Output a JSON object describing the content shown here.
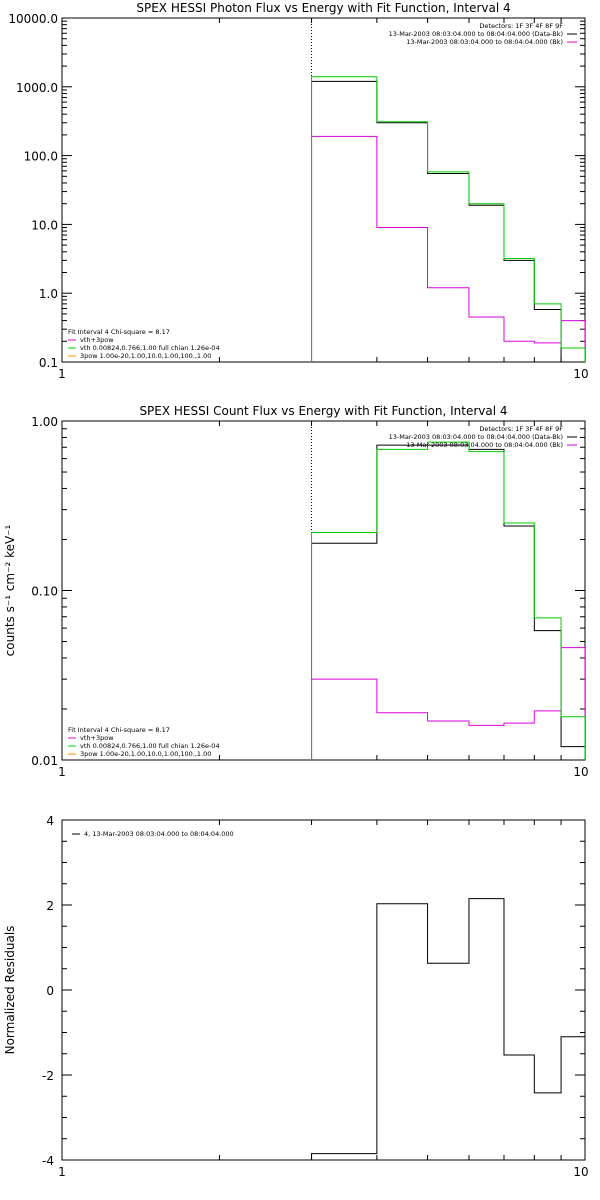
{
  "chart_data": [
    {
      "type": "line",
      "title": "SPEX HESSI Photon Flux vs Energy with Fit Function, Interval 4",
      "xlabel": "",
      "ylabel": "",
      "xscale": "log",
      "yscale": "log",
      "xlim": [
        1,
        10
      ],
      "ylim": [
        0.1,
        10000
      ],
      "xticklabels": [
        "1",
        "10"
      ],
      "yticklabels": [
        "0.1",
        "1.0",
        "10.0",
        "100.0",
        "1000.0",
        "10000.0"
      ],
      "marker_line_x": 3,
      "edges": [
        3,
        4,
        5,
        6,
        7,
        8,
        9,
        10
      ],
      "series": [
        {
          "name": "13-Mar-2003 08:03:04.000 to 08:04:04.000 (Data-Bk)",
          "color": "#000000",
          "values": [
            1200,
            300,
            55,
            19,
            3,
            0.58,
            0.1
          ]
        },
        {
          "name": "13-Mar-2003 08:03:04.000 to 08:04:04.000 (Bk)",
          "color": "#dd00dd",
          "values": [
            190,
            9,
            1.2,
            0.45,
            0.2,
            0.19,
            0.4
          ]
        },
        {
          "name": "vth 0.00824,0.766,1.00 full chian 1.26e-04",
          "color": "#00cc00",
          "values": [
            1400,
            310,
            58,
            20,
            3.2,
            0.7,
            0.16
          ]
        }
      ],
      "legend_top_right": [
        "Detectors: 1F 3F 4F 8F 9F",
        "13-Mar-2003 08:03:04.000 to 08:04:04.000 (Data-Bk)",
        "13-Mar-2003 08:03:04.000 to 08:04:04.000 (Bk)"
      ],
      "legend_top_right_colors": [
        "",
        "#000000",
        "#dd00dd"
      ],
      "legend_bottom_left_title": "Fit Interval 4   Chi-square = 8.17",
      "legend_bottom_left": [
        {
          "text": "vth+3pow",
          "color": "#dd00dd"
        },
        {
          "text": "vth 0.00824,0.766,1.00  full chian 1.26e-04",
          "color": "#00cc00"
        },
        {
          "text": "3pow 1.00e-20,1.00,10.0,1.00,100.,1.00",
          "color": "#ff8800"
        }
      ]
    },
    {
      "type": "line",
      "title": "SPEX HESSI Count Flux vs Energy with Fit Function, Interval 4",
      "xlabel": "",
      "ylabel": "counts s⁻¹ cm⁻² keV⁻¹",
      "xscale": "log",
      "yscale": "log",
      "xlim": [
        1,
        10
      ],
      "ylim": [
        0.01,
        1.0
      ],
      "xticklabels": [
        "1",
        "10"
      ],
      "yticklabels": [
        "0.01",
        "0.10",
        "1.00"
      ],
      "marker_line_x": 3,
      "edges": [
        3,
        4,
        5,
        6,
        7,
        8,
        9,
        10
      ],
      "series": [
        {
          "name": "13-Mar-2003 08:03:04.000 to 08:04:04.000 (Data-Bk)",
          "color": "#000000",
          "values": [
            0.19,
            0.72,
            0.72,
            0.68,
            0.24,
            0.058,
            0.012
          ]
        },
        {
          "name": "13-Mar-2003 08:03:04.000 to 08:04:04.000 (Bk)",
          "color": "#dd00dd",
          "values": [
            0.03,
            0.019,
            0.017,
            0.016,
            0.0165,
            0.0195,
            0.046
          ]
        },
        {
          "name": "vth 0.00824,0.766,1.00 full chian 1.26e-04",
          "color": "#00cc00",
          "values": [
            0.22,
            0.68,
            0.75,
            0.66,
            0.25,
            0.069,
            0.018
          ]
        }
      ],
      "legend_top_right": [
        "Detectors: 1F 3F 4F 8F 9F",
        "13-Mar-2003 08:03:04.000 to 08:04:04.000 (Data-Bk)",
        "13-Mar-2003 08:03:04.000 to 08:04:04.000 (Bk)"
      ],
      "legend_top_right_colors": [
        "",
        "#000000",
        "#dd00dd"
      ],
      "legend_bottom_left_title": "Fit Interval 4   Chi-square = 8.17",
      "legend_bottom_left": [
        {
          "text": "vth+3pow",
          "color": "#dd00dd"
        },
        {
          "text": "vth 0.00824,0.766,1.00  full chian 1.26e-04",
          "color": "#00cc00"
        },
        {
          "text": "3pow 1.00e-20,1.00,10.0,1.00,100.,1.00",
          "color": "#ff8800"
        }
      ]
    },
    {
      "type": "line",
      "title": "",
      "xlabel": "",
      "ylabel": "Normalized Residuals",
      "xscale": "log",
      "yscale": "linear",
      "xlim": [
        1,
        10
      ],
      "ylim": [
        -4,
        4
      ],
      "xticklabels": [
        "1",
        "10"
      ],
      "yticklabels": [
        "-4",
        "-2",
        "0",
        "2",
        "4"
      ],
      "yticks": [
        -4,
        -2,
        0,
        2,
        4
      ],
      "edges": [
        3,
        4,
        5,
        6,
        7,
        8,
        9,
        10
      ],
      "series": [
        {
          "name": "4, 13-Mar-2003 08:03:04.000 to 08:04:04.000",
          "color": "#000000",
          "values": [
            -3.85,
            2.03,
            0.63,
            2.15,
            -1.53,
            -2.42,
            -1.1
          ]
        }
      ],
      "legend_top_left": "4, 13-Mar-2003 08:03:04.000 to 08:04:04.000"
    }
  ]
}
